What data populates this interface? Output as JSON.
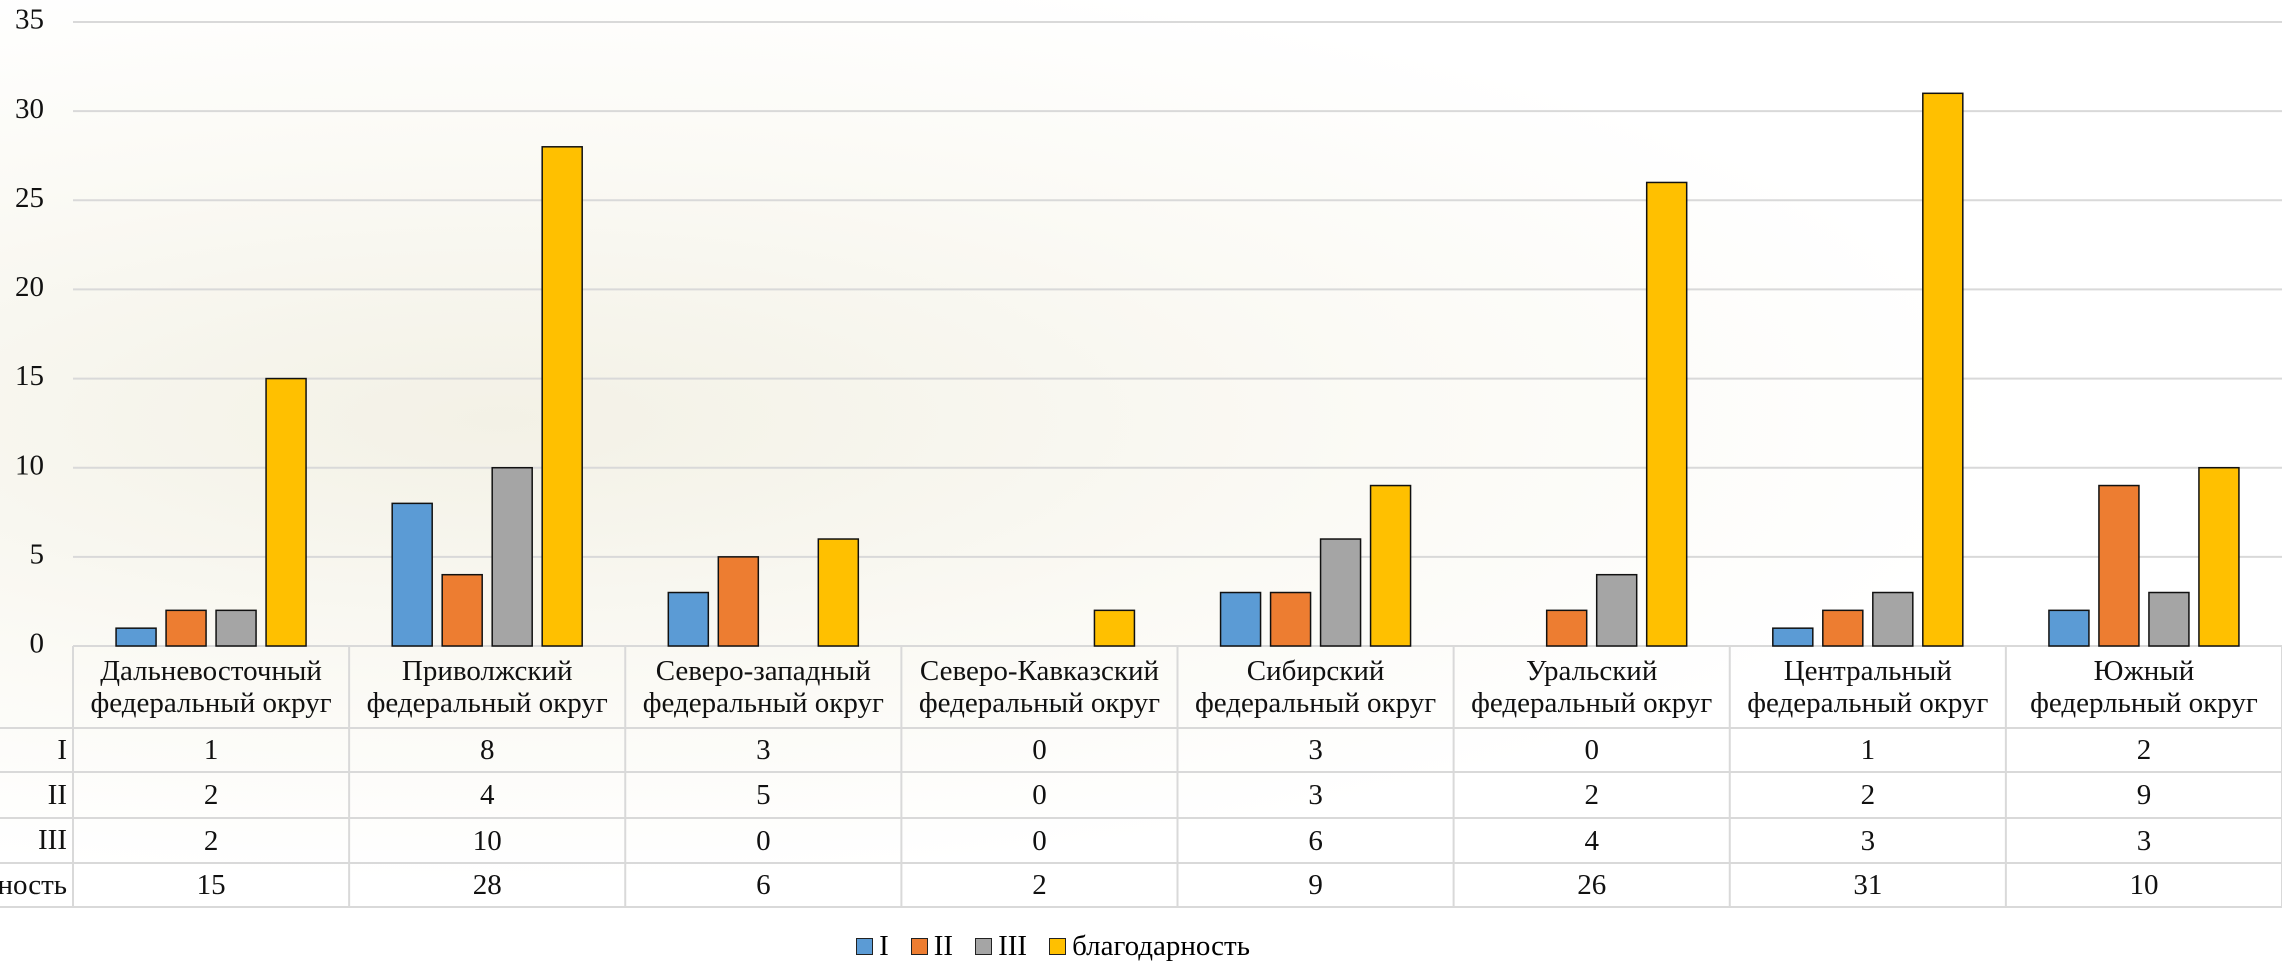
{
  "chart_data": {
    "type": "bar",
    "categories": [
      "Дальневосточный федеральный округ",
      "Приволжский федеральный округ",
      "Северо-западный федеральный округ",
      "Северо-Кавказский федеральный округ",
      "Сибирский федеральный округ",
      "Уральский федеральный округ",
      "Центральный федеральный округ",
      "Южный федерльный округ"
    ],
    "series": [
      {
        "name": "I",
        "color": "#5b9bd5",
        "values": [
          1,
          8,
          3,
          0,
          3,
          0,
          1,
          2
        ]
      },
      {
        "name": "II",
        "color": "#ed7d31",
        "values": [
          2,
          4,
          5,
          0,
          3,
          2,
          2,
          9
        ]
      },
      {
        "name": "III",
        "color": "#a5a5a5",
        "values": [
          2,
          10,
          0,
          0,
          6,
          4,
          3,
          3
        ]
      },
      {
        "name": "благодарность",
        "color": "#ffc000",
        "values": [
          15,
          28,
          6,
          2,
          9,
          26,
          31,
          10
        ]
      }
    ],
    "ylim": [
      0,
      35
    ],
    "yticks": [
      0,
      5,
      10,
      15,
      20,
      25,
      30,
      35
    ],
    "grid": true,
    "legend": "bottom",
    "data_table": true
  }
}
